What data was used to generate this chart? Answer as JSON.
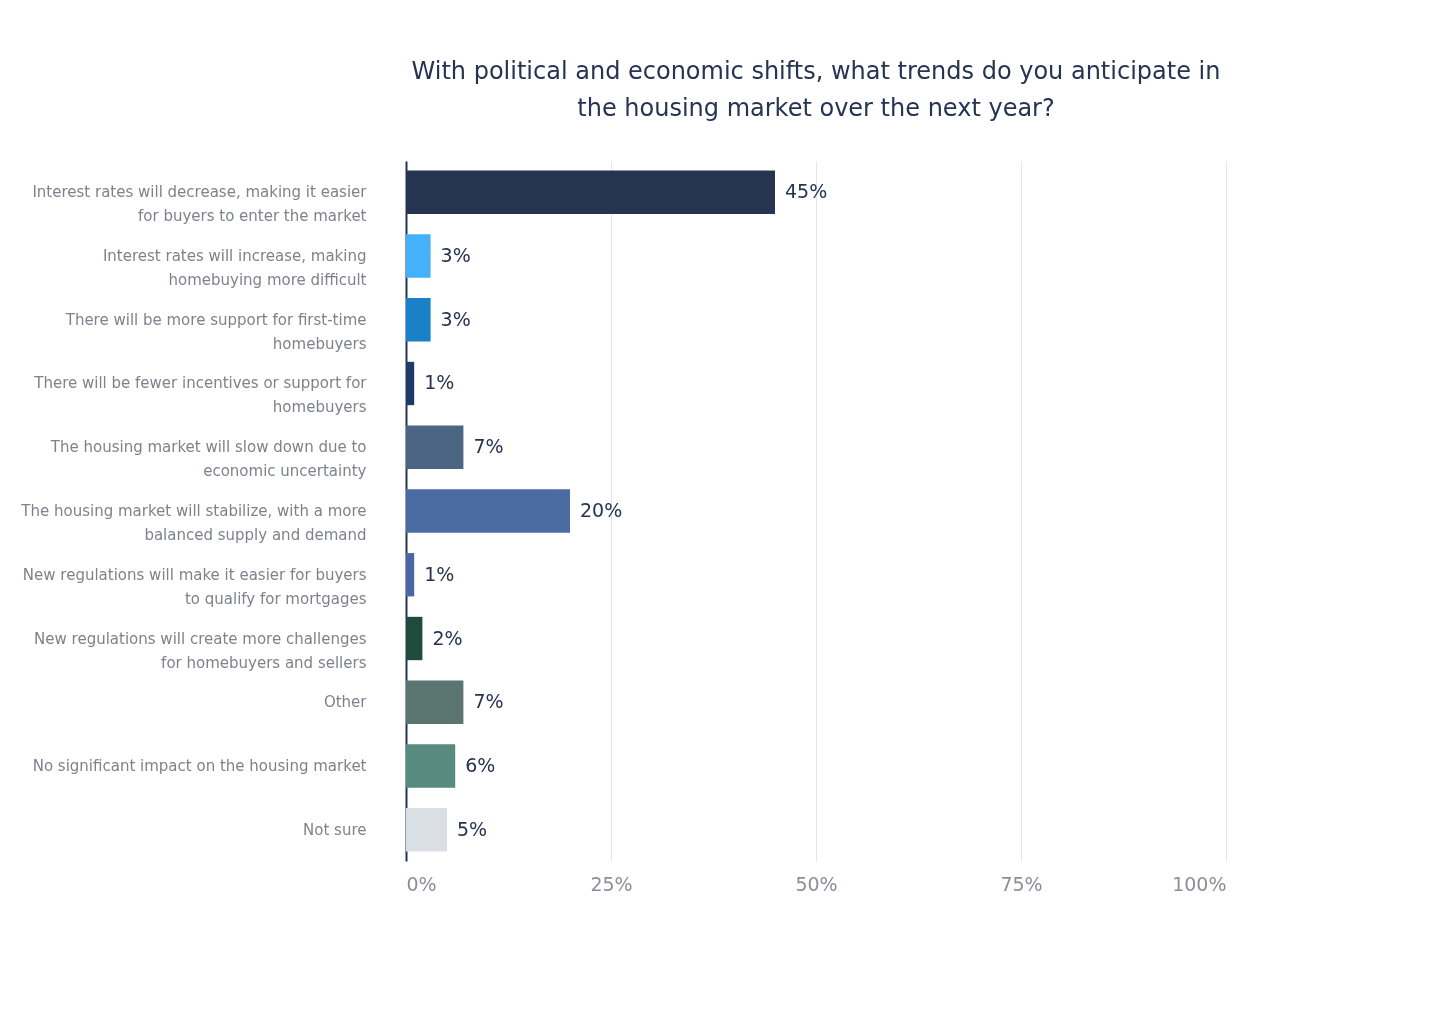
{
  "chart_data": {
    "type": "bar",
    "orientation": "horizontal",
    "title": "With political and economic shifts, what trends do you anticipate in the housing market over the next year?",
    "categories": [
      "Interest rates will decrease, making it easier for buyers to enter the market",
      "Interest rates will increase, making homebuying more difficult",
      "There will be more support for first-time homebuyers",
      "There will be fewer incentives or support for homebuyers",
      "The housing market will slow down due to economic uncertainty",
      "The housing market will stabilize, with a more balanced supply and demand",
      "New regulations will make it easier for buyers to qualify for mortgages",
      "New regulations will create more challenges for homebuyers and sellers",
      "Other",
      "No significant impact on the housing market",
      "Not sure"
    ],
    "values": [
      45,
      3,
      3,
      1,
      7,
      20,
      1,
      2,
      7,
      6,
      5
    ],
    "value_labels": [
      "45%",
      "3%",
      "3%",
      "1%",
      "7%",
      "20%",
      "1%",
      "2%",
      "7%",
      "6%",
      "5%"
    ],
    "colors": [
      "#263451",
      "#45b1fb",
      "#1a80c8",
      "#1e3a66",
      "#4c6583",
      "#4a6ca3",
      "#4a67a3",
      "#1f4a3c",
      "#5a7470",
      "#578b80",
      "#dadee5"
    ],
    "xlim": [
      0,
      100
    ],
    "xticks": [
      {
        "value": 0,
        "label": "0%"
      },
      {
        "value": 25,
        "label": "25%"
      },
      {
        "value": 50,
        "label": "50%"
      },
      {
        "value": 75,
        "label": "75%"
      },
      {
        "value": 100,
        "label": "100%"
      }
    ],
    "grid": "x"
  }
}
